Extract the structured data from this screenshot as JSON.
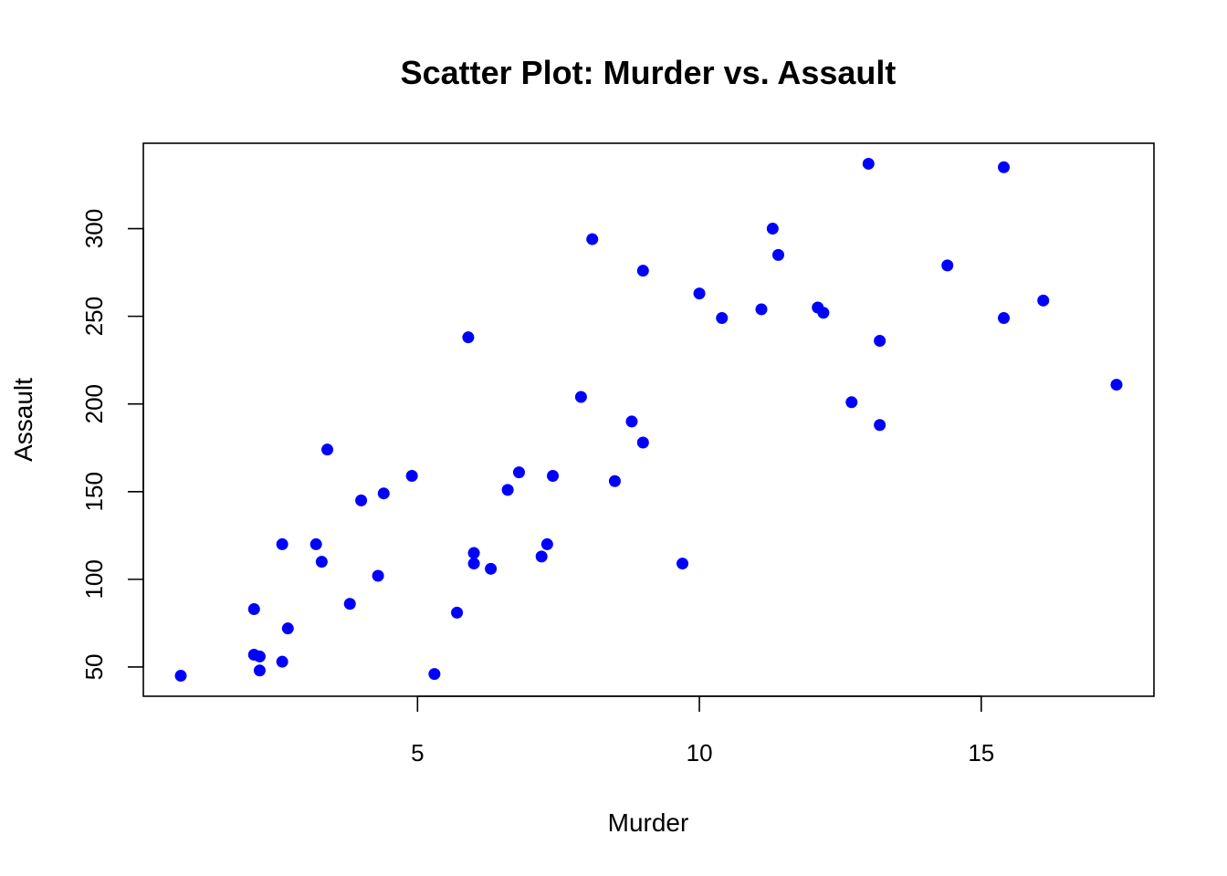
{
  "chart_data": {
    "type": "scatter",
    "title": "Scatter Plot: Murder vs. Assault",
    "xlabel": "Murder",
    "ylabel": "Assault",
    "xlim": [
      0.8,
      17.4
    ],
    "ylim": [
      45,
      337
    ],
    "xticks": [
      5,
      10,
      15
    ],
    "yticks": [
      50,
      100,
      150,
      200,
      250,
      300
    ],
    "grid": false,
    "legend": "none",
    "point_color": "#0000ff",
    "x": [
      13.2,
      10.0,
      8.1,
      8.8,
      9.0,
      7.9,
      3.3,
      5.9,
      15.4,
      17.4,
      5.3,
      2.6,
      10.4,
      7.2,
      2.2,
      6.0,
      9.7,
      15.4,
      2.1,
      11.3,
      4.4,
      12.1,
      2.7,
      16.1,
      9.0,
      6.0,
      4.3,
      12.2,
      2.1,
      7.4,
      11.4,
      11.1,
      13.0,
      0.8,
      7.3,
      6.6,
      4.9,
      6.3,
      3.4,
      14.4,
      3.8,
      13.2,
      12.7,
      3.2,
      2.2,
      8.5,
      4.0,
      5.7,
      2.6,
      6.8
    ],
    "y": [
      236,
      263,
      294,
      190,
      276,
      204,
      110,
      238,
      335,
      211,
      46,
      120,
      249,
      113,
      56,
      115,
      109,
      249,
      83,
      300,
      149,
      255,
      72,
      259,
      178,
      109,
      102,
      252,
      57,
      159,
      285,
      254,
      337,
      45,
      120,
      151,
      159,
      106,
      174,
      279,
      86,
      188,
      201,
      120,
      48,
      156,
      145,
      81,
      53,
      161
    ]
  }
}
